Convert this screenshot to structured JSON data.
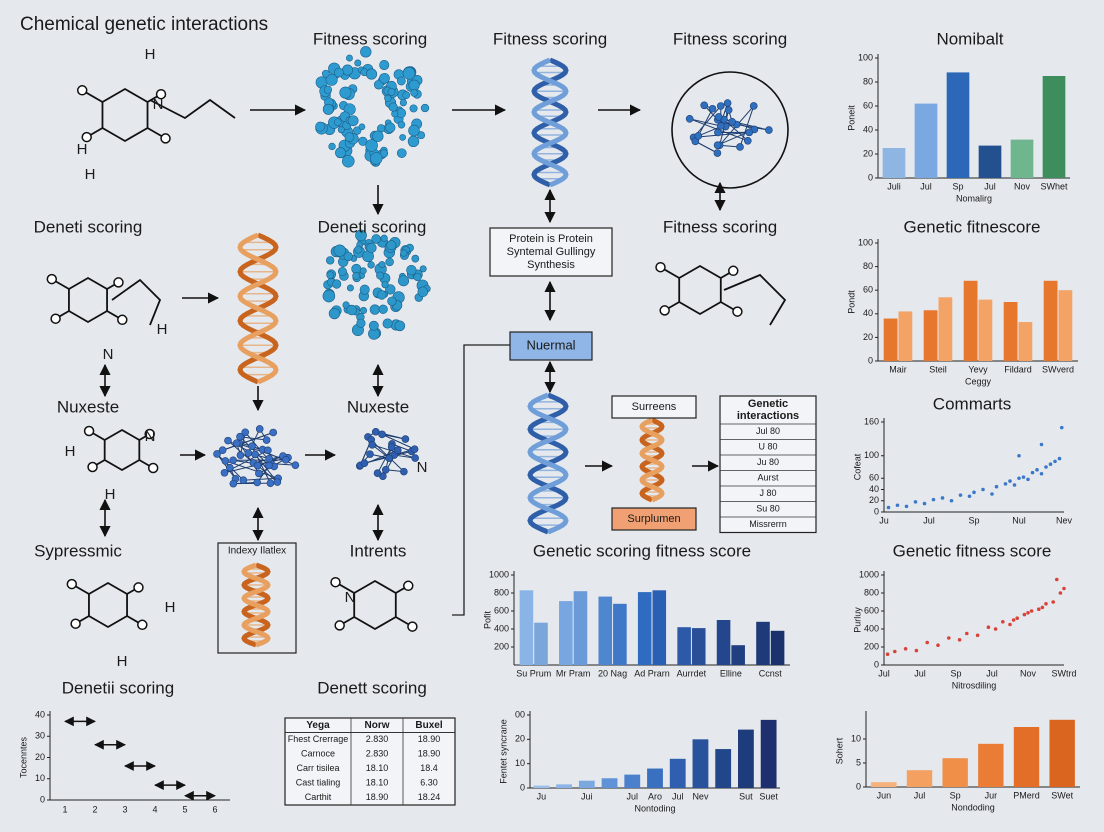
{
  "title": "Chemical genetic interactions",
  "labels": [
    "Fitness scoring",
    "Fitness scoring",
    "Fitness scoring",
    "Deneti scoring",
    "Deneti scoring",
    "Fitness scoring",
    "Nuxeste",
    "Nuxeste",
    "Sypressmic",
    "Intrents",
    "Denetii scoring",
    "Denett scoring"
  ],
  "atom_labels": [
    "H",
    "H",
    "H",
    "N",
    "H",
    "N",
    "H",
    "H",
    "N",
    "H",
    "H",
    "N",
    "N"
  ],
  "boxes": [
    {
      "lines": [
        "Protein is Protein",
        "Syntemal Gullingy",
        "Synthesis"
      ]
    },
    {
      "lines": [
        "Nuermal"
      ]
    },
    {
      "lines": [
        "Surreens"
      ]
    },
    {
      "lines": [
        "Surplumen"
      ]
    },
    {
      "lines": [
        "Indexy Ilatlex"
      ]
    }
  ],
  "interactions_table": {
    "header": [
      "Genetic",
      "interactions"
    ],
    "rows": [
      "Jul 80",
      "U 80",
      "Ju 80",
      "Aurst",
      "J 80",
      "Su 80",
      "Missrerrn"
    ]
  },
  "summary_table": {
    "header": [
      "Yega",
      "Norw",
      "Buxel"
    ],
    "rows": [
      [
        "Fhest Crerrage",
        "2.830",
        "18.90"
      ],
      [
        "Carnoce",
        "2.830",
        "18.90"
      ],
      [
        "Carr tisilea",
        "18.10",
        "18.4"
      ],
      [
        "Cast tialing",
        "18.10",
        "6.30"
      ],
      [
        "Carthit",
        "18.90",
        "18.24"
      ]
    ]
  },
  "charts": [
    {
      "type": "bar",
      "title": "Nomibalt",
      "xlabel": "Nomalirg",
      "ylabel": "Poneit",
      "categories": [
        "Juli",
        "Jul",
        "Sp",
        "Jul",
        "Nov",
        "SWhet"
      ],
      "values": [
        25,
        62,
        88,
        27,
        32,
        85
      ],
      "colors": [
        "#8fb6e3",
        "#7aa8e0",
        "#2d68b8",
        "#23508f",
        "#6fb58e",
        "#3e8d5c"
      ],
      "ylim": [
        0,
        100
      ],
      "yticks": [
        0,
        20,
        40,
        60,
        80,
        100
      ]
    },
    {
      "type": "bar",
      "title": "Genetic fitnescore",
      "xlabel": "Ceggy",
      "ylabel": "Pondt",
      "categories": [
        "Mair",
        "Steil",
        "Yevy",
        "Fildard",
        "SWverd"
      ],
      "series": [
        {
          "color": "#e8772e",
          "values": [
            36,
            43,
            68,
            50,
            68
          ]
        },
        {
          "color": "#f3a366",
          "values": [
            42,
            54,
            52,
            33,
            60
          ]
        }
      ],
      "ylim": [
        0,
        100
      ],
      "yticks": [
        0,
        20,
        40,
        60,
        80,
        100
      ]
    },
    {
      "type": "scatter",
      "title": "Commarts",
      "ylabel": "Cofeat",
      "color": "#3a78c8",
      "x": [
        0.1,
        0.3,
        0.5,
        0.7,
        0.9,
        1.1,
        1.3,
        1.5,
        1.7,
        1.9,
        2.0,
        2.2,
        2.4,
        2.5,
        2.7,
        2.8,
        2.9,
        3.0,
        3.1,
        3.2,
        3.3,
        3.4,
        3.5,
        3.6,
        3.7,
        3.8,
        3.9,
        3.95,
        3.5,
        3.0
      ],
      "y": [
        8,
        12,
        10,
        18,
        15,
        22,
        25,
        20,
        30,
        28,
        35,
        40,
        32,
        45,
        50,
        55,
        48,
        60,
        62,
        58,
        70,
        75,
        68,
        80,
        85,
        90,
        95,
        150,
        120,
        100
      ],
      "xlim": [
        0,
        4
      ],
      "xticks": [
        {
          "value": 0,
          "label": "Ju"
        },
        {
          "value": 1,
          "label": "Jul"
        },
        {
          "value": 2,
          "label": "Sp"
        },
        {
          "value": 3,
          "label": "Nul"
        },
        {
          "value": 4,
          "label": "Nev"
        }
      ],
      "ylim": [
        0,
        160
      ],
      "yticks": [
        0,
        20,
        40,
        60,
        100,
        160
      ]
    },
    {
      "type": "scatter",
      "title": "Genetic fitness score",
      "xlabel": "Nitrosdiling",
      "ylabel": "Purluy",
      "color": "#d9443a",
      "x": [
        0.1,
        0.3,
        0.6,
        0.9,
        1.2,
        1.5,
        1.8,
        2.1,
        2.3,
        2.6,
        2.9,
        3.1,
        3.3,
        3.5,
        3.7,
        3.9,
        4.1,
        4.3,
        4.5,
        4.7,
        4.9,
        5.0,
        4.8,
        4.4,
        4.0,
        3.6
      ],
      "y": [
        120,
        150,
        180,
        160,
        250,
        220,
        300,
        280,
        350,
        330,
        420,
        400,
        480,
        450,
        520,
        560,
        600,
        620,
        680,
        700,
        800,
        850,
        950,
        640,
        580,
        500
      ],
      "xlim": [
        0,
        5
      ],
      "xticks": [
        {
          "value": 0,
          "label": "Jul"
        },
        {
          "value": 1,
          "label": "Jul"
        },
        {
          "value": 2,
          "label": "Sp"
        },
        {
          "value": 3,
          "label": "Jul"
        },
        {
          "value": 4,
          "label": "Nov"
        },
        {
          "value": 5,
          "label": "SWtrd"
        }
      ],
      "ylim": [
        0,
        1000
      ],
      "yticks": [
        0,
        200,
        400,
        600,
        800,
        1000
      ]
    },
    {
      "type": "bar",
      "xlabel": "Nondoding",
      "ylabel": "Sohert",
      "categories": [
        "Jun",
        "Jul",
        "Sp",
        "Jur",
        "PMerd",
        "SWet"
      ],
      "values": [
        1,
        3.5,
        6,
        9,
        12.5,
        14
      ],
      "colors": [
        "#f5b27a",
        "#f3a060",
        "#f08f48",
        "#ea7c35",
        "#e36e28",
        "#d9651f"
      ],
      "ylim": [
        0,
        15
      ],
      "yticks": [
        0,
        5,
        10
      ]
    },
    {
      "type": "bar",
      "title": "Genetic scoring fitness score",
      "ylabel": "Pofit",
      "categories": [
        "Su Prum",
        "Mr Pram",
        "20 Nag",
        "Ad Prarn",
        "Aurrdet",
        "Elline",
        "Ccnst"
      ],
      "series": [
        {
          "colors": [
            "#8ab4e6",
            "#78a6e0",
            "#4f86d0",
            "#2f6bc0",
            "#2c5aa8",
            "#24468c",
            "#1e3a78"
          ],
          "values": [
            830,
            710,
            760,
            810,
            420,
            500,
            480
          ]
        },
        {
          "colors": [
            "#7aa6dc",
            "#6b9ad8",
            "#3f78c8",
            "#2a60b4",
            "#284f98",
            "#203f80",
            "#1b336c"
          ],
          "values": [
            470,
            820,
            680,
            830,
            410,
            220,
            380
          ]
        }
      ],
      "ylim": [
        0,
        1000
      ],
      "yticks": [
        200,
        400,
        600,
        800,
        1000
      ]
    },
    {
      "type": "bar",
      "xlabel": "Nontoding",
      "ylabel": "Fentet syncrane",
      "categories": [
        "Ju",
        null,
        "Jui",
        null,
        "Jul",
        "Aro",
        "Jul",
        "Nev",
        null,
        "Sut",
        "Suet"
      ],
      "values": [
        1,
        1.5,
        3,
        4,
        5.5,
        8,
        12,
        20,
        16,
        24,
        28
      ],
      "colors": [
        "#9cc0ea",
        "#8cb4e6",
        "#7ca8e0",
        "#5f92d6",
        "#4a80cc",
        "#3a70c0",
        "#2f5fae",
        "#28529c",
        "#22468a",
        "#1e3c7c",
        "#1d2f6e"
      ],
      "ylim": [
        0,
        30
      ],
      "yticks": [
        0,
        10,
        20,
        {
          "value": 30,
          "label": "00"
        }
      ]
    },
    {
      "type": "timeline",
      "ylabel": "Tocenntes",
      "segments": [
        {
          "start": 1,
          "end": 2,
          "y": 37
        },
        {
          "start": 2,
          "end": 3,
          "y": 26
        },
        {
          "start": 3,
          "end": 4,
          "y": 16
        },
        {
          "start": 4,
          "end": 5,
          "y": 7
        },
        {
          "start": 5,
          "end": 6,
          "y": 2
        }
      ],
      "xlim": [
        0.5,
        6.5
      ],
      "xticks": [
        1,
        2,
        3,
        4,
        5,
        6
      ],
      "ylim": [
        0,
        40
      ],
      "yticks": [
        0,
        10,
        20,
        30,
        40
      ]
    }
  ]
}
